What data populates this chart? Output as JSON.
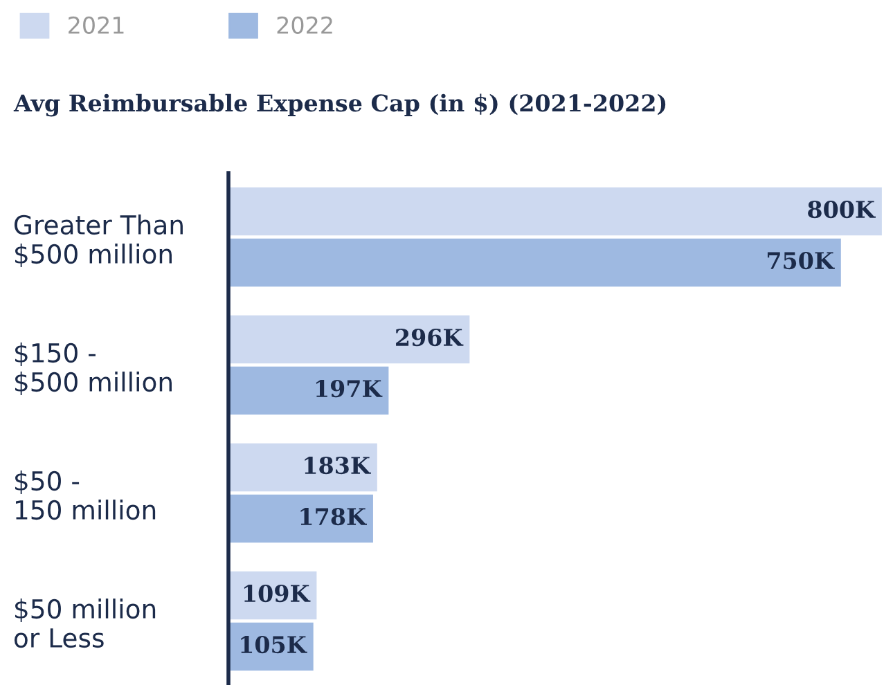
{
  "chart_data": {
    "type": "bar",
    "orientation": "horizontal",
    "title": "Avg Reimbursable Expense Cap (in $) (2021-2022)",
    "categories": [
      "Greater Than\n$500 million",
      "$150 -\n$500 million",
      "$50 -\n150 million",
      "$50 million\nor Less"
    ],
    "series": [
      {
        "name": "2021",
        "color": "#cdd9f0",
        "values": [
          800,
          296,
          183,
          109
        ],
        "value_labels": [
          "800K",
          "296K",
          "183K",
          "109K"
        ]
      },
      {
        "name": "2022",
        "color": "#9eb9e1",
        "values": [
          750,
          197,
          178,
          105
        ],
        "value_labels": [
          "750K",
          "197K",
          "178K",
          "105K"
        ]
      }
    ],
    "legend": "top left",
    "grid": false
  }
}
